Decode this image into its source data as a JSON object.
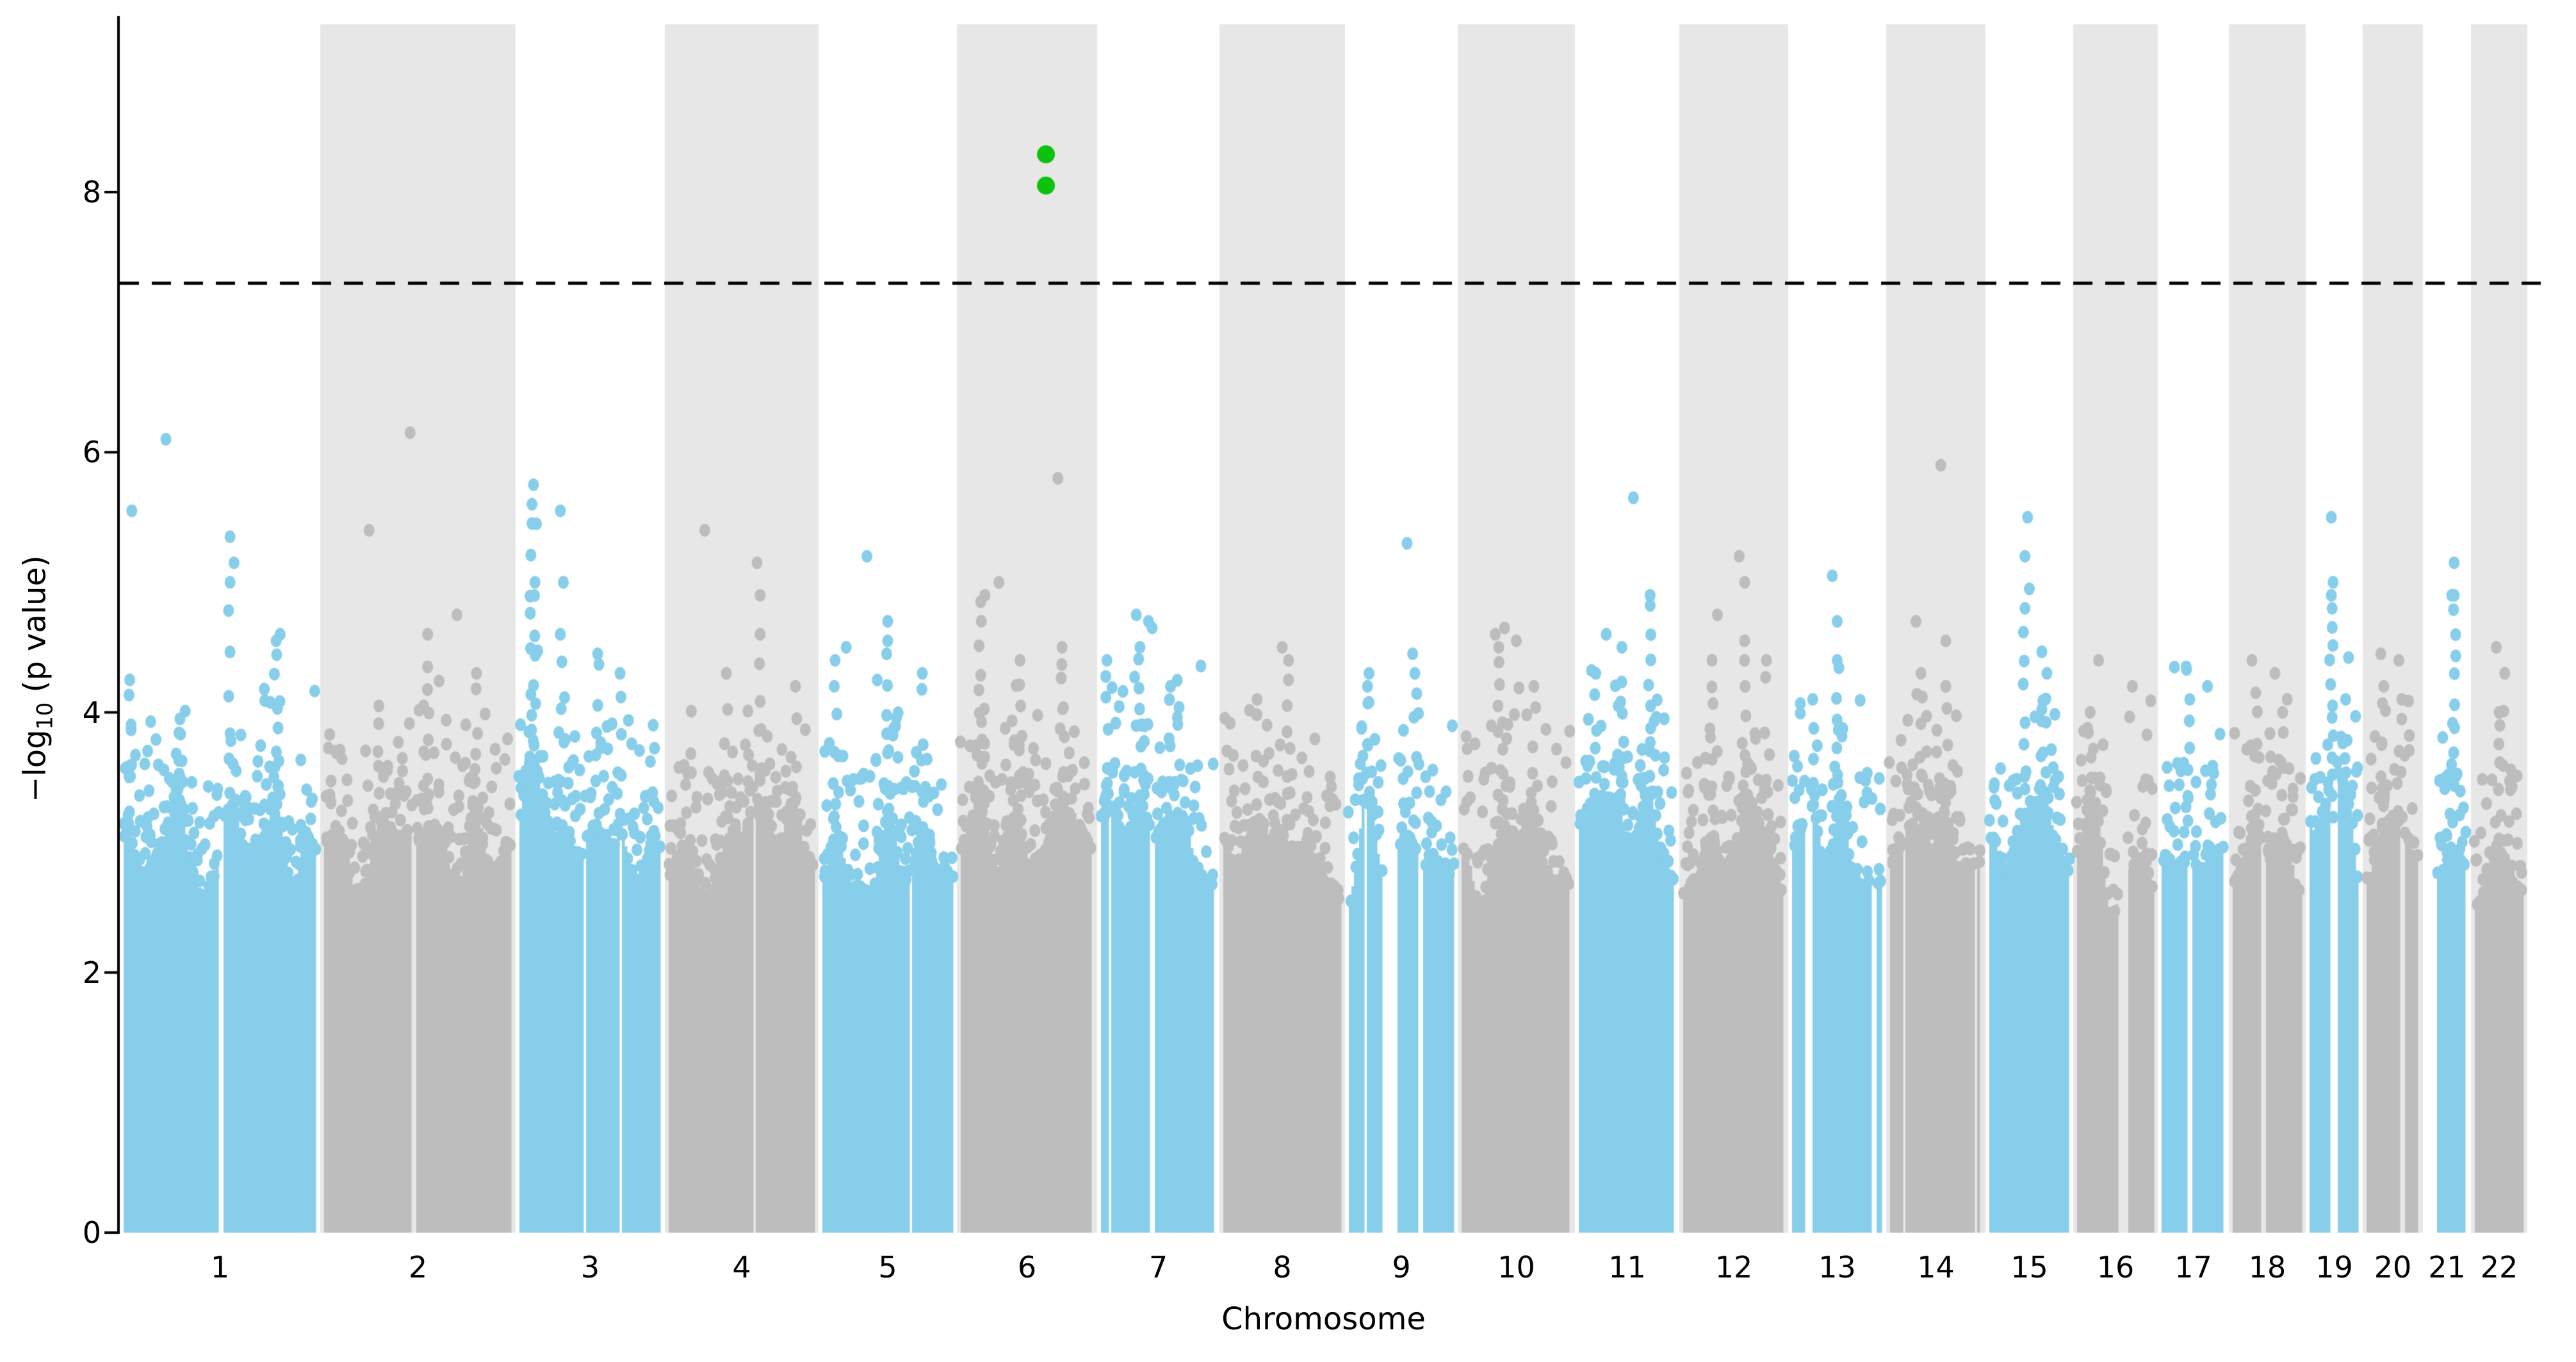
{
  "chart_data": {
    "type": "scatter",
    "variant": "manhattan",
    "title": "",
    "xlabel": "Chromosome",
    "ylabel": {
      "prefix": "−log",
      "sub": "10",
      "suffix": " (p value)"
    },
    "ylim": [
      0,
      9.33
    ],
    "yticks": [
      "0",
      "2",
      "4",
      "6",
      "8"
    ],
    "ytick_values": [
      0,
      2,
      4,
      6,
      8
    ],
    "grid": false,
    "legend": null,
    "significance_line": {
      "neglog10p": 7.3,
      "style": "dashed",
      "color": "#000000"
    },
    "highlight_points": [
      {
        "chromosome": "6",
        "pos_frac": 0.635,
        "neglog10p": 8.29
      },
      {
        "chromosome": "6",
        "pos_frac": 0.635,
        "neglog10p": 8.05
      }
    ],
    "colors": {
      "chr_odd_points": "#87CEEB",
      "chr_even_points": "#BDBDBD",
      "chr_even_band": "#E7E7E7",
      "highlight": "#0DC20D",
      "axis": "#000000",
      "background": "#FFFFFF"
    },
    "render_seed": 12,
    "chromosomes": [
      {
        "label": "1",
        "rel_width": 313,
        "dense_top": 2.82,
        "peak": [
          0.23,
          6.1
        ],
        "singles": [
          [
            0.06,
            5.55
          ],
          [
            0.55,
            5.35
          ],
          [
            0.57,
            5.15
          ],
          [
            0.8,
            4.6
          ]
        ],
        "towers": [
          [
            0.05,
            4.25,
            5
          ],
          [
            0.55,
            5.0,
            6
          ],
          [
            0.78,
            4.55,
            8
          ],
          [
            0.3,
            3.95,
            5
          ]
        ],
        "gaps": [
          [
            0.49,
            0.03
          ]
        ],
        "n_high": 24
      },
      {
        "label": "2",
        "rel_width": 305,
        "dense_top": 2.78,
        "peak": [
          0.46,
          6.15
        ],
        "singles": [
          [
            0.25,
            5.4
          ],
          [
            0.7,
            4.75
          ],
          [
            0.55,
            4.6
          ]
        ],
        "towers": [
          [
            0.3,
            4.05,
            5
          ],
          [
            0.55,
            4.35,
            6
          ],
          [
            0.8,
            4.3,
            4
          ]
        ],
        "gaps": [],
        "n_high": 22
      },
      {
        "label": "3",
        "rel_width": 233,
        "dense_top": 2.85,
        "peak": [
          0.12,
          5.75
        ],
        "singles": [
          [
            0.3,
            5.55
          ],
          [
            0.14,
            5.45
          ],
          [
            0.32,
            5.0
          ]
        ],
        "towers": [
          [
            0.11,
            5.6,
            10
          ],
          [
            0.13,
            5.0,
            7
          ],
          [
            0.3,
            4.6,
            5
          ],
          [
            0.55,
            4.45,
            6
          ],
          [
            0.7,
            4.3,
            4
          ]
        ],
        "gaps": [
          [
            0.45,
            0.02
          ]
        ],
        "n_high": 20
      },
      {
        "label": "4",
        "rel_width": 240,
        "dense_top": 2.75,
        "peak": [
          0.26,
          5.4
        ],
        "singles": [
          [
            0.6,
            5.15
          ],
          [
            0.62,
            4.9
          ]
        ],
        "towers": [
          [
            0.4,
            4.3,
            4
          ],
          [
            0.62,
            4.6,
            5
          ],
          [
            0.85,
            4.2,
            3
          ]
        ],
        "gaps": [],
        "n_high": 16
      },
      {
        "label": "5",
        "rel_width": 216,
        "dense_top": 2.8,
        "peak": [
          0.35,
          5.2
        ],
        "singles": [
          [
            0.5,
            4.7
          ],
          [
            0.2,
            4.5
          ]
        ],
        "towers": [
          [
            0.12,
            4.4,
            5
          ],
          [
            0.5,
            4.55,
            7
          ],
          [
            0.75,
            4.3,
            4
          ]
        ],
        "gaps": [],
        "n_high": 16
      },
      {
        "label": "6",
        "rel_width": 219,
        "dense_top": 2.8,
        "peak": [
          0.72,
          5.8
        ],
        "singles": [
          [
            0.3,
            5.0
          ],
          [
            0.2,
            4.9
          ]
        ],
        "towers": [
          [
            0.17,
            4.85,
            9
          ],
          [
            0.45,
            4.4,
            5
          ],
          [
            0.75,
            4.5,
            5
          ]
        ],
        "gaps": [],
        "n_high": 18
      },
      {
        "label": "7",
        "rel_width": 191,
        "dense_top": 2.82,
        "peak": [
          0.32,
          4.75
        ],
        "singles": [
          [
            0.42,
            4.7
          ],
          [
            0.45,
            4.65
          ]
        ],
        "towers": [
          [
            0.08,
            4.4,
            6
          ],
          [
            0.35,
            4.5,
            8
          ],
          [
            0.6,
            4.2,
            4
          ]
        ],
        "gaps": [],
        "n_high": 16
      },
      {
        "label": "8",
        "rel_width": 196,
        "dense_top": 2.75,
        "peak": [
          0.5,
          4.5
        ],
        "singles": [
          [
            0.55,
            4.4
          ]
        ],
        "towers": [
          [
            0.3,
            4.1,
            4
          ],
          [
            0.55,
            4.25,
            5
          ]
        ],
        "gaps": [],
        "n_high": 13
      },
      {
        "label": "9",
        "rel_width": 176,
        "dense_top": 2.78,
        "peak": [
          0.55,
          5.3
        ],
        "singles": [
          [
            0.6,
            4.45
          ]
        ],
        "towers": [
          [
            0.2,
            4.2,
            4
          ],
          [
            0.62,
            4.3,
            5
          ]
        ],
        "gaps": [
          [
            0.34,
            0.13
          ]
        ],
        "n_high": 12
      },
      {
        "label": "10",
        "rel_width": 183,
        "dense_top": 2.78,
        "peak": [
          0.4,
          4.65
        ],
        "singles": [
          [
            0.32,
            4.6
          ],
          [
            0.5,
            4.55
          ]
        ],
        "towers": [
          [
            0.35,
            4.5,
            7
          ],
          [
            0.65,
            4.2,
            4
          ]
        ],
        "gaps": [],
        "n_high": 14
      },
      {
        "label": "11",
        "rel_width": 163,
        "dense_top": 2.8,
        "peak": [
          0.56,
          5.65
        ],
        "singles": [
          [
            0.3,
            4.6
          ]
        ],
        "towers": [
          [
            0.72,
            4.9,
            10
          ],
          [
            0.2,
            4.3,
            5
          ],
          [
            0.45,
            4.5,
            5
          ]
        ],
        "gaps": [],
        "n_high": 14
      },
      {
        "label": "12",
        "rel_width": 170,
        "dense_top": 2.8,
        "peak": [
          0.55,
          5.2
        ],
        "singles": [
          [
            0.6,
            5.0
          ],
          [
            0.35,
            4.75
          ]
        ],
        "towers": [
          [
            0.3,
            4.4,
            5
          ],
          [
            0.6,
            4.55,
            6
          ],
          [
            0.8,
            4.4,
            4
          ]
        ],
        "gaps": [],
        "n_high": 14
      },
      {
        "label": "13",
        "rel_width": 153,
        "dense_top": 2.72,
        "peak": [
          0.45,
          5.05
        ],
        "singles": [
          [
            0.5,
            4.7
          ]
        ],
        "towers": [
          [
            0.5,
            4.4,
            8
          ],
          [
            0.25,
            4.1,
            4
          ]
        ],
        "gaps": [],
        "n_high": 11
      },
      {
        "label": "14",
        "rel_width": 155,
        "dense_top": 2.75,
        "peak": [
          0.55,
          5.9
        ],
        "singles": [
          [
            0.3,
            4.7
          ],
          [
            0.6,
            4.55
          ]
        ],
        "towers": [
          [
            0.35,
            4.3,
            5
          ],
          [
            0.6,
            4.2,
            4
          ]
        ],
        "gaps": [],
        "n_high": 11
      },
      {
        "label": "15",
        "rel_width": 137,
        "dense_top": 2.75,
        "peak": [
          0.48,
          5.5
        ],
        "singles": [
          [
            0.45,
            5.2
          ],
          [
            0.5,
            4.95
          ]
        ],
        "towers": [
          [
            0.45,
            4.8,
            7
          ],
          [
            0.7,
            4.3,
            4
          ]
        ],
        "gaps": [],
        "n_high": 10
      },
      {
        "label": "16",
        "rel_width": 132,
        "dense_top": 2.7,
        "peak": [
          0.3,
          4.4
        ],
        "singles": [
          [
            0.7,
            4.2
          ]
        ],
        "towers": [
          [
            0.2,
            4.0,
            4
          ]
        ],
        "gaps": [
          [
            0.52,
            0.13
          ]
        ],
        "n_high": 9
      },
      {
        "label": "17",
        "rel_width": 111,
        "dense_top": 2.75,
        "peak": [
          0.4,
          4.35
        ],
        "singles": [
          [
            0.7,
            4.2
          ]
        ],
        "towers": [
          [
            0.45,
            4.1,
            5
          ]
        ],
        "gaps": [],
        "n_high": 9
      },
      {
        "label": "18",
        "rel_width": 120,
        "dense_top": 2.72,
        "peak": [
          0.3,
          4.4
        ],
        "singles": [
          [
            0.6,
            4.3
          ]
        ],
        "towers": [
          [
            0.35,
            4.15,
            5
          ],
          [
            0.7,
            4.0,
            3
          ]
        ],
        "gaps": [],
        "n_high": 9
      },
      {
        "label": "19",
        "rel_width": 89,
        "dense_top": 2.8,
        "peak": [
          0.45,
          5.5
        ],
        "singles": [
          [
            0.48,
            5.0
          ]
        ],
        "towers": [
          [
            0.45,
            4.9,
            12
          ],
          [
            0.7,
            4.1,
            3
          ]
        ],
        "gaps": [],
        "n_high": 8
      },
      {
        "label": "20",
        "rel_width": 94,
        "dense_top": 2.75,
        "peak": [
          0.3,
          4.45
        ],
        "singles": [
          [
            0.6,
            4.4
          ]
        ],
        "towers": [
          [
            0.35,
            4.2,
            4
          ],
          [
            0.65,
            4.1,
            3
          ]
        ],
        "gaps": [],
        "n_high": 8
      },
      {
        "label": "21",
        "rel_width": 75,
        "dense_top": 2.72,
        "peak": [
          0.65,
          5.15
        ],
        "singles": [
          [
            0.6,
            4.9
          ]
        ],
        "towers": [
          [
            0.65,
            4.9,
            10
          ]
        ],
        "gaps": [
          [
            0.1,
            0.2
          ]
        ],
        "n_high": 7
      },
      {
        "label": "22",
        "rel_width": 88,
        "dense_top": 2.75,
        "peak": [
          0.45,
          4.5
        ],
        "singles": [
          [
            0.6,
            4.3
          ]
        ],
        "towers": [
          [
            0.5,
            4.0,
            4
          ]
        ],
        "gaps": [],
        "n_high": 8
      }
    ]
  }
}
